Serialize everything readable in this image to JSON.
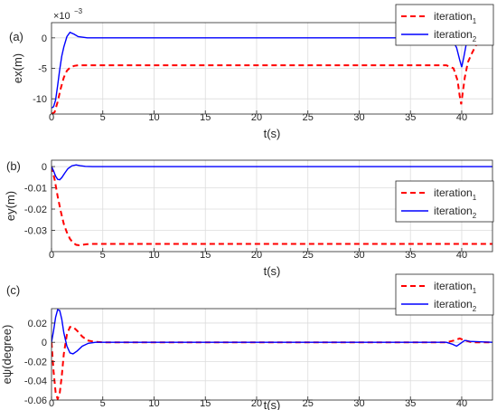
{
  "colors": {
    "iteration1": "#ff0000",
    "iteration2": "#0000ff",
    "grid": "#dcdcdc",
    "axis": "#262626"
  },
  "chart_data": [
    {
      "type": "line",
      "panel_label": "(a)",
      "xlabel": "t(s)",
      "ylabel": "ex(m)",
      "exponent_label": "×10",
      "exponent_power": "−3",
      "xlim": [
        0,
        43
      ],
      "ylim": [
        -12.5,
        2.5
      ],
      "xticks": [
        0,
        5,
        10,
        15,
        20,
        25,
        30,
        35,
        40
      ],
      "yticks": [
        0,
        -5,
        -10
      ],
      "ytick_labels": [
        "0",
        "-5",
        "-10"
      ],
      "grid": true,
      "legend_position": "top-right",
      "series": [
        {
          "name": "iteration",
          "subscript": "1",
          "style": "dashed",
          "color": "#ff0000",
          "x": [
            0,
            0.3,
            0.6,
            0.9,
            1.2,
            1.5,
            1.8,
            2.2,
            2.6,
            3,
            5,
            10,
            20,
            30,
            38.5,
            39.2,
            39.6,
            39.8,
            39.95,
            40.1,
            40.3,
            40.6,
            41,
            41.4,
            41.8,
            42.2,
            43
          ],
          "y": [
            -12.5,
            -12.2,
            -10.5,
            -8.3,
            -6.5,
            -5.4,
            -4.9,
            -4.6,
            -4.5,
            -4.5,
            -4.5,
            -4.5,
            -4.5,
            -4.5,
            -4.5,
            -5,
            -7,
            -9.5,
            -10.9,
            -9,
            -6.5,
            -4,
            -2.5,
            -1.2,
            -0.3,
            0,
            0
          ]
        },
        {
          "name": "iteration",
          "subscript": "2",
          "style": "solid",
          "color": "#0000ff",
          "x": [
            0,
            0.2,
            0.4,
            0.6,
            0.8,
            1.0,
            1.2,
            1.5,
            1.8,
            2.2,
            2.6,
            3.5,
            10,
            20,
            30,
            38.5,
            39.1,
            39.5,
            39.8,
            40.0,
            40.2,
            40.5,
            40.9,
            41.3,
            41.7,
            42.2,
            43
          ],
          "y": [
            -11.5,
            -11.3,
            -10.2,
            -7.8,
            -5.2,
            -3.0,
            -1.5,
            0.2,
            0.9,
            0.6,
            0.2,
            0,
            0,
            0,
            0,
            0,
            -0.4,
            -1.6,
            -3.6,
            -4.8,
            -3.2,
            -0.5,
            1.2,
            1.6,
            0.9,
            0.2,
            0
          ]
        }
      ]
    },
    {
      "type": "line",
      "panel_label": "(b)",
      "xlabel": "t(s)",
      "ylabel": "ey(m)",
      "xlim": [
        0,
        43
      ],
      "ylim": [
        -0.04,
        0.003
      ],
      "xticks": [
        0,
        5,
        10,
        15,
        20,
        25,
        30,
        35,
        40
      ],
      "yticks": [
        0,
        -0.01,
        -0.02,
        -0.03
      ],
      "ytick_labels": [
        "0",
        "-0.01",
        "-0.02",
        "-0.03"
      ],
      "grid": true,
      "legend_position": "right",
      "series": [
        {
          "name": "iteration",
          "subscript": "1",
          "style": "dashed",
          "color": "#ff0000",
          "x": [
            0,
            0.3,
            0.6,
            0.9,
            1.2,
            1.5,
            1.8,
            2.1,
            2.4,
            2.7,
            3.0,
            3.5,
            4,
            5,
            10,
            20,
            30,
            40,
            43
          ],
          "y": [
            0,
            -0.006,
            -0.014,
            -0.021,
            -0.027,
            -0.031,
            -0.034,
            -0.0358,
            -0.0368,
            -0.037,
            -0.0368,
            -0.0365,
            -0.0364,
            -0.0364,
            -0.0364,
            -0.0364,
            -0.0364,
            -0.0364,
            -0.0364
          ],
          "_": 0
        },
        {
          "name": "iteration",
          "subscript": "2",
          "style": "solid",
          "color": "#0000ff",
          "x": [
            0,
            0.2,
            0.4,
            0.6,
            0.8,
            1.0,
            1.3,
            1.6,
            2.0,
            2.4,
            2.8,
            3.3,
            4,
            10,
            20,
            30,
            40,
            43
          ],
          "y": [
            0,
            -0.002,
            -0.0045,
            -0.006,
            -0.0062,
            -0.0052,
            -0.003,
            -0.001,
            0.0004,
            0.0008,
            0.0004,
            0.0001,
            0,
            0,
            0,
            0,
            0,
            0
          ]
        }
      ]
    },
    {
      "type": "line",
      "panel_label": "(c)",
      "xlabel": "t(s)",
      "ylabel": "eψ(degree)",
      "xlim": [
        0,
        43
      ],
      "ylim": [
        -0.06,
        0.035
      ],
      "xticks": [
        0,
        5,
        10,
        15,
        20,
        25,
        30,
        35,
        40
      ],
      "yticks": [
        0.02,
        0,
        -0.02,
        -0.04,
        -0.06
      ],
      "ytick_labels": [
        "0.02",
        "0",
        "-0.02",
        "-0.04",
        "-0.06"
      ],
      "grid": true,
      "legend_position": "top-right",
      "series": [
        {
          "name": "iteration",
          "subscript": "1",
          "style": "dashed",
          "color": "#ff0000",
          "x": [
            0,
            0.2,
            0.4,
            0.6,
            0.8,
            1.0,
            1.2,
            1.5,
            1.8,
            2.1,
            2.5,
            3.0,
            3.5,
            4.2,
            5,
            10,
            20,
            30,
            38.5,
            39.3,
            39.8,
            40.3,
            41,
            43
          ],
          "y": [
            0,
            -0.03,
            -0.052,
            -0.059,
            -0.053,
            -0.035,
            -0.012,
            0.008,
            0.016,
            0.016,
            0.012,
            0.006,
            0.002,
            0.0005,
            0,
            0,
            0,
            0,
            0,
            0.002,
            0.004,
            0.002,
            0,
            0
          ]
        },
        {
          "name": "iteration",
          "subscript": "2",
          "style": "solid",
          "color": "#0000ff",
          "x": [
            0,
            0.2,
            0.4,
            0.6,
            0.8,
            1.0,
            1.2,
            1.5,
            1.8,
            2.1,
            2.5,
            3.0,
            3.6,
            4.3,
            5,
            10,
            20,
            30,
            38.5,
            39.1,
            39.5,
            39.9,
            40.3,
            40.8,
            43
          ],
          "y": [
            0,
            0.012,
            0.026,
            0.034,
            0.033,
            0.024,
            0.01,
            -0.004,
            -0.011,
            -0.012,
            -0.009,
            -0.004,
            -0.001,
            0,
            0,
            0,
            0,
            0,
            0,
            -0.002,
            -0.004,
            -0.001,
            0.002,
            0.001,
            0
          ]
        }
      ]
    }
  ]
}
